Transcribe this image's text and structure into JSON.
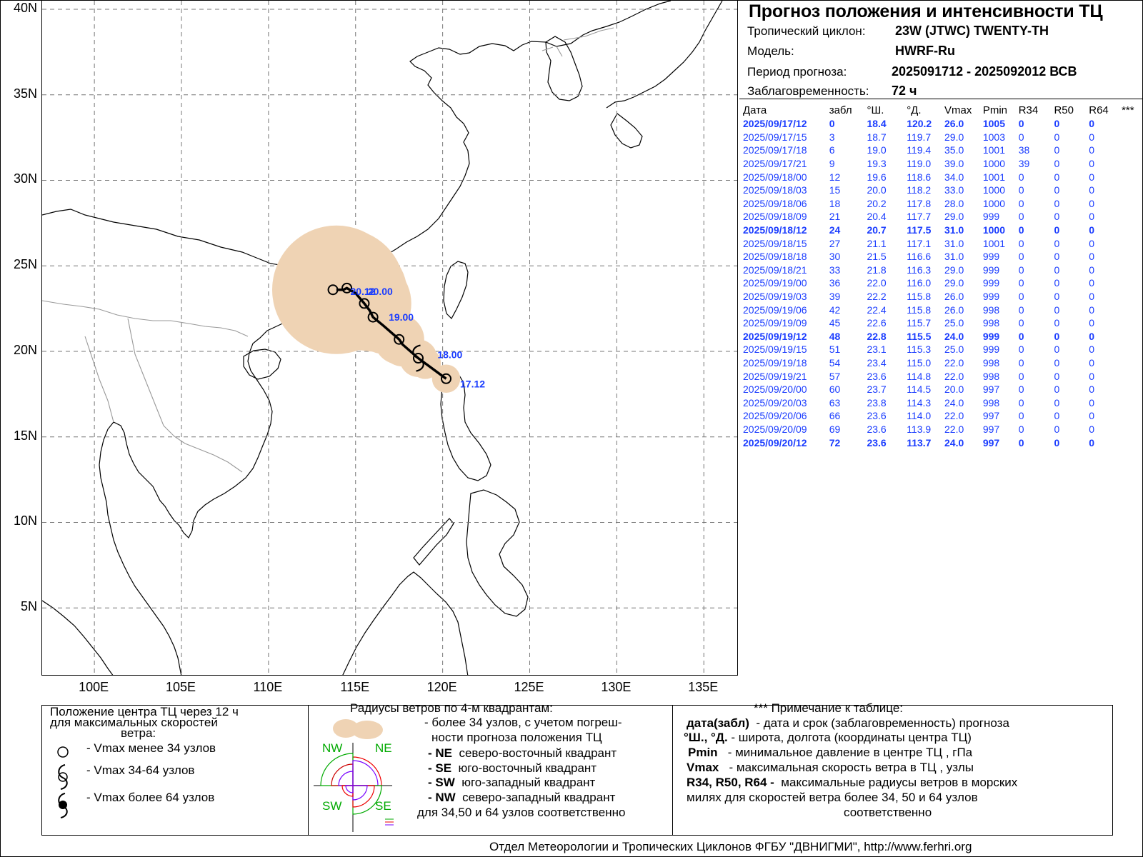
{
  "map": {
    "lat_labels": [
      "40N",
      "35N",
      "30N",
      "25N",
      "20N",
      "15N",
      "10N",
      "5N"
    ],
    "lon_labels": [
      "100E",
      "105E",
      "110E",
      "115E",
      "120E",
      "125E",
      "130E",
      "135E"
    ],
    "track_labels": [
      {
        "text": "17.12",
        "lat": 17.9,
        "lon": 121.0
      },
      {
        "text": "18.00",
        "lat": 19.6,
        "lon": 119.7
      },
      {
        "text": "19.00",
        "lat": 21.8,
        "lon": 116.9
      },
      {
        "text": "20.00",
        "lat": 23.3,
        "lon": 115.7
      },
      {
        "text": "20.12",
        "lat": 23.3,
        "lon": 114.7
      }
    ],
    "colors": {
      "track": "#000000",
      "cone": "#efd3b4",
      "labels": "#1a3cff",
      "coast": "#000000",
      "borders": "#999999",
      "grid": "#777777"
    }
  },
  "chart_data": {
    "type": "map_track",
    "lat_range": [
      1,
      40.5
    ],
    "lon_range": [
      97,
      137
    ],
    "track": [
      {
        "time": "2025/09/17/12",
        "lat": 18.4,
        "lon": 120.2,
        "vmax": 26.0,
        "symbol": "circle"
      },
      {
        "time": "2025/09/18/00",
        "lat": 19.6,
        "lon": 118.6,
        "vmax": 34.0,
        "symbol": "ts"
      },
      {
        "time": "2025/09/18/12",
        "lat": 20.7,
        "lon": 117.5,
        "vmax": 31.0,
        "symbol": "circle"
      },
      {
        "time": "2025/09/19/00",
        "lat": 22.0,
        "lon": 116.0,
        "vmax": 29.0,
        "symbol": "circle"
      },
      {
        "time": "2025/09/19/12",
        "lat": 22.8,
        "lon": 115.5,
        "vmax": 24.0,
        "symbol": "circle"
      },
      {
        "time": "2025/09/20/00",
        "lat": 23.7,
        "lon": 114.5,
        "vmax": 20.0,
        "symbol": "circle"
      },
      {
        "time": "2025/09/20/12",
        "lat": 23.6,
        "lon": 113.7,
        "vmax": 24.0,
        "symbol": "circle"
      }
    ],
    "path": [
      [
        18.4,
        120.2
      ],
      [
        19.3,
        119.0
      ],
      [
        19.6,
        118.6
      ],
      [
        20.4,
        117.7
      ],
      [
        20.7,
        117.5
      ],
      [
        21.5,
        116.6
      ],
      [
        22.0,
        116.0
      ],
      [
        22.4,
        115.8
      ],
      [
        22.8,
        115.5
      ],
      [
        23.4,
        115.0
      ],
      [
        23.7,
        114.5
      ],
      [
        23.6,
        114.3
      ],
      [
        23.6,
        113.9
      ]
    ]
  },
  "info": {
    "title": "Прогноз положения и интенсивности ТЦ",
    "cyclone_label": "Тропический циклон:",
    "cyclone_value": "23W (JTWC)  TWENTY-TH",
    "model_label": "Модель:",
    "model_value": "HWRF-Ru",
    "period_label": "Период прогноза:",
    "period_value": "2025091712 - 2025092012 ВСВ",
    "lead_label": "Заблаговременность:",
    "lead_value": "72 ч"
  },
  "table": {
    "headers": [
      "Дата",
      "забл",
      "°Ш.",
      "°Д.",
      "Vmax",
      "Pmin",
      "R34",
      "R50",
      "R64",
      "***"
    ],
    "rows": [
      {
        "bold": true,
        "cells": [
          "2025/09/17/12",
          "0",
          "18.4",
          "120.2",
          "26.0",
          "1005",
          "0",
          "0",
          "0"
        ]
      },
      {
        "bold": false,
        "cells": [
          "2025/09/17/15",
          "3",
          "18.7",
          "119.7",
          "29.0",
          "1003",
          "0",
          "0",
          "0"
        ]
      },
      {
        "bold": false,
        "cells": [
          "2025/09/17/18",
          "6",
          "19.0",
          "119.4",
          "35.0",
          "1001",
          "38",
          "0",
          "0"
        ]
      },
      {
        "bold": false,
        "cells": [
          "2025/09/17/21",
          "9",
          "19.3",
          "119.0",
          "39.0",
          "1000",
          "39",
          "0",
          "0"
        ]
      },
      {
        "bold": false,
        "cells": [
          "2025/09/18/00",
          "12",
          "19.6",
          "118.6",
          "34.0",
          "1001",
          "0",
          "0",
          "0"
        ]
      },
      {
        "bold": false,
        "cells": [
          "2025/09/18/03",
          "15",
          "20.0",
          "118.2",
          "33.0",
          "1000",
          "0",
          "0",
          "0"
        ]
      },
      {
        "bold": false,
        "cells": [
          "2025/09/18/06",
          "18",
          "20.2",
          "117.8",
          "28.0",
          "1000",
          "0",
          "0",
          "0"
        ]
      },
      {
        "bold": false,
        "cells": [
          "2025/09/18/09",
          "21",
          "20.4",
          "117.7",
          "29.0",
          "999",
          "0",
          "0",
          "0"
        ]
      },
      {
        "bold": true,
        "cells": [
          "2025/09/18/12",
          "24",
          "20.7",
          "117.5",
          "31.0",
          "1000",
          "0",
          "0",
          "0"
        ]
      },
      {
        "bold": false,
        "cells": [
          "2025/09/18/15",
          "27",
          "21.1",
          "117.1",
          "31.0",
          "1001",
          "0",
          "0",
          "0"
        ]
      },
      {
        "bold": false,
        "cells": [
          "2025/09/18/18",
          "30",
          "21.5",
          "116.6",
          "31.0",
          "999",
          "0",
          "0",
          "0"
        ]
      },
      {
        "bold": false,
        "cells": [
          "2025/09/18/21",
          "33",
          "21.8",
          "116.3",
          "29.0",
          "999",
          "0",
          "0",
          "0"
        ]
      },
      {
        "bold": false,
        "cells": [
          "2025/09/19/00",
          "36",
          "22.0",
          "116.0",
          "29.0",
          "999",
          "0",
          "0",
          "0"
        ]
      },
      {
        "bold": false,
        "cells": [
          "2025/09/19/03",
          "39",
          "22.2",
          "115.8",
          "26.0",
          "999",
          "0",
          "0",
          "0"
        ]
      },
      {
        "bold": false,
        "cells": [
          "2025/09/19/06",
          "42",
          "22.4",
          "115.8",
          "26.0",
          "998",
          "0",
          "0",
          "0"
        ]
      },
      {
        "bold": false,
        "cells": [
          "2025/09/19/09",
          "45",
          "22.6",
          "115.7",
          "25.0",
          "998",
          "0",
          "0",
          "0"
        ]
      },
      {
        "bold": true,
        "cells": [
          "2025/09/19/12",
          "48",
          "22.8",
          "115.5",
          "24.0",
          "999",
          "0",
          "0",
          "0"
        ]
      },
      {
        "bold": false,
        "cells": [
          "2025/09/19/15",
          "51",
          "23.1",
          "115.3",
          "25.0",
          "999",
          "0",
          "0",
          "0"
        ]
      },
      {
        "bold": false,
        "cells": [
          "2025/09/19/18",
          "54",
          "23.4",
          "115.0",
          "22.0",
          "998",
          "0",
          "0",
          "0"
        ]
      },
      {
        "bold": false,
        "cells": [
          "2025/09/19/21",
          "57",
          "23.6",
          "114.8",
          "22.0",
          "998",
          "0",
          "0",
          "0"
        ]
      },
      {
        "bold": false,
        "cells": [
          "2025/09/20/00",
          "60",
          "23.7",
          "114.5",
          "20.0",
          "997",
          "0",
          "0",
          "0"
        ]
      },
      {
        "bold": false,
        "cells": [
          "2025/09/20/03",
          "63",
          "23.8",
          "114.3",
          "24.0",
          "998",
          "0",
          "0",
          "0"
        ]
      },
      {
        "bold": false,
        "cells": [
          "2025/09/20/06",
          "66",
          "23.6",
          "114.0",
          "22.0",
          "997",
          "0",
          "0",
          "0"
        ]
      },
      {
        "bold": false,
        "cells": [
          "2025/09/20/09",
          "69",
          "23.6",
          "113.9",
          "22.0",
          "997",
          "0",
          "0",
          "0"
        ]
      },
      {
        "bold": true,
        "cells": [
          "2025/09/20/12",
          "72",
          "23.6",
          "113.7",
          "24.0",
          "997",
          "0",
          "0",
          "0"
        ]
      }
    ]
  },
  "legend": {
    "left": {
      "title_1": "Положение центра ТЦ через 12 ч",
      "title_2": "для максимальных скоростей",
      "title_3": "ветра:",
      "items": [
        "- Vmax   менее 34 узлов",
        "- Vmax   34-64 узлов",
        "- Vmax   более 64 узлов"
      ]
    },
    "mid": {
      "title": "Радиусы ветров по 4-м квадрантам:",
      "cone_1": "- более 34 узлов, с учетом погреш-",
      "cone_2": "ности прогноза положения ТЦ",
      "quads": [
        {
          "code": "- NE",
          "text": "северо-восточный квадрант"
        },
        {
          "code": "- SE",
          "text": "юго-восточный квадрант"
        },
        {
          "code": "- SW",
          "text": "юго-западный квадрант"
        },
        {
          "code": "- NW",
          "text": "северо-западный квадрант"
        }
      ],
      "last": "для 34,50 и 64 узлов соответственно",
      "q_nw": "NW",
      "q_ne": "NE",
      "q_sw": "SW",
      "q_se": "SE"
    },
    "right": {
      "title": "*** Примечание к таблице:",
      "l1_b": "дата(забл)",
      "l1": "- дата и срок (заблаговременность) прогноза",
      "l2_b": "°Ш., °Д.",
      "l2": "- широта, долгота   (координаты центра ТЦ)",
      "l3_b": "Pmin",
      "l3": "- минимальное давление в центре ТЦ , гПа",
      "l4_b": "Vmax",
      "l4": "-  максимальная скорость ветра в ТЦ , узлы",
      "l5_b": "R34, R50, R64 -",
      "l5": "максимальные радиусы ветров в морских",
      "l6": "милях для скоростей ветра более 34, 50 и 64 узлов",
      "l7": "соответственно"
    }
  },
  "footer": "Отдел Метеорологии и Тропических Циклонов ФГБУ \"ДВНИГМИ\",  http://www.ferhri.org"
}
